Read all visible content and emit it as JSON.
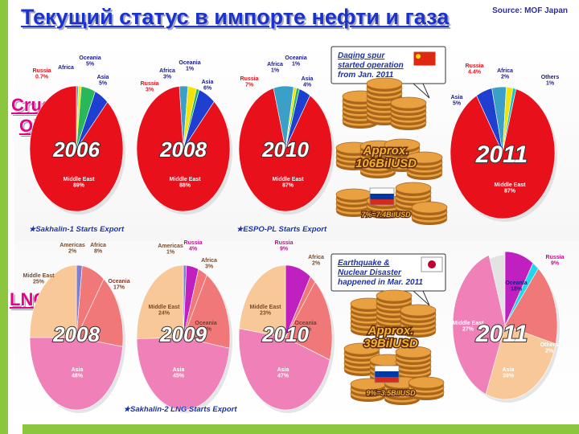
{
  "title": "Текущий статус в импорте нефти и газа",
  "source": "Source: MOF Japan",
  "categories": {
    "oil": "Crude\nOil",
    "lng": "LNG"
  },
  "colors": {
    "middle_east_oil": "#e8101a",
    "russia": "#3aa0c8",
    "oceania": "#28b85a",
    "africa": "#f2e40a",
    "asia": "#1e3fcf",
    "others_oil": "#18c4c8",
    "lng_middle_east": "#f8c898",
    "lng_oceania": "#f07878",
    "lng_asia": "#f080b8",
    "lng_russia": "#c020c0",
    "lng_others": "#20d8e8",
    "lng_americas": "#7b7fd0"
  },
  "callouts": {
    "oil_note": [
      "Daqing spur",
      "started operation",
      "from Jan. 2011"
    ],
    "lng_note": [
      "Earthquake &",
      "Nuclear Disaster",
      "happened  in Mar. 2011"
    ],
    "oil_coins": [
      "Approx.",
      "106BilUSD"
    ],
    "oil_russia": "7%=7.4BilUSD",
    "lng_coins": [
      "Approx.",
      "39BilUSD"
    ],
    "lng_russia": "9%=3.5BilUSD"
  },
  "starts": {
    "sakhalin1": "★Sakhalin-1 Starts Export",
    "espo": "★ESPO-PL Starts Export",
    "sakhalin2": "★Sakhalin-2 LNG Starts Export"
  },
  "chart_data": [
    {
      "type": "pie",
      "title": "2006",
      "group": "Crude Oil",
      "slices": [
        {
          "label": "Middle East",
          "value": 89
        },
        {
          "label": "Russia",
          "value": 0.7
        },
        {
          "label": "Africa",
          "value": 1
        },
        {
          "label": "Oceania",
          "value": 5
        },
        {
          "label": "Asia",
          "value": 5
        }
      ],
      "label_text": {
        "Middle East": "Middle East\n89%",
        "Russia": "Russia\n0.7%",
        "Africa": "Africa\n",
        "Oceania": "Oceania\n5%",
        "Asia": "Asia\n5%"
      }
    },
    {
      "type": "pie",
      "title": "2008",
      "group": "Crude Oil",
      "slices": [
        {
          "label": "Middle East",
          "value": 88
        },
        {
          "label": "Russia",
          "value": 3
        },
        {
          "label": "Africa",
          "value": 3
        },
        {
          "label": "Oceania",
          "value": 1
        },
        {
          "label": "Asia",
          "value": 6
        }
      ],
      "label_text": {
        "Middle East": "Middle East\n88%",
        "Russia": "Russia\n3%",
        "Africa": "Africa\n3%",
        "Oceania": "Oceania\n1%",
        "Asia": "Asia\n6%"
      }
    },
    {
      "type": "pie",
      "title": "2010",
      "group": "Crude Oil",
      "slices": [
        {
          "label": "Middle East",
          "value": 87
        },
        {
          "label": "Russia",
          "value": 7
        },
        {
          "label": "Africa",
          "value": 1
        },
        {
          "label": "Oceania",
          "value": 1
        },
        {
          "label": "Asia",
          "value": 4
        }
      ],
      "label_text": {
        "Middle East": "Middle East\n87%",
        "Russia": "Russia\n7%",
        "Africa": "Africa\n1%",
        "Oceania": "Oceania\n1%",
        "Asia": "Asia\n4%"
      }
    },
    {
      "type": "pie",
      "title": "2011",
      "group": "Crude Oil",
      "slices": [
        {
          "label": "Middle East",
          "value": 87
        },
        {
          "label": "Russia",
          "value": 4.4
        },
        {
          "label": "Africa",
          "value": 2
        },
        {
          "label": "Others",
          "value": 1
        },
        {
          "label": "Asia",
          "value": 5
        }
      ],
      "label_text": {
        "Middle East": "Middle East\n87%",
        "Russia": "Russia\n4.4%",
        "Africa": "Africa\n2%",
        "Others": "Others\n1%",
        "Asia": "Asia\n5%"
      }
    },
    {
      "type": "pie",
      "title": "2008",
      "group": "LNG",
      "slices": [
        {
          "label": "Asia",
          "value": 48
        },
        {
          "label": "Middle East",
          "value": 25
        },
        {
          "label": "Americas",
          "value": 2
        },
        {
          "label": "Africa",
          "value": 8
        },
        {
          "label": "Oceania",
          "value": 17
        }
      ],
      "label_text": {
        "Asia": "Asia\n48%",
        "Middle East": "Middle East\n25%",
        "Americas": "Americas\n2%",
        "Africa": "Africa\n8%",
        "Oceania": "Oceania\n17%"
      }
    },
    {
      "type": "pie",
      "title": "2009",
      "group": "LNG",
      "slices": [
        {
          "label": "Asia",
          "value": 45
        },
        {
          "label": "Middle East",
          "value": 24
        },
        {
          "label": "Americas",
          "value": 1
        },
        {
          "label": "Russia",
          "value": 4
        },
        {
          "label": "Africa",
          "value": 3
        },
        {
          "label": "Oceania",
          "value": 18
        }
      ],
      "label_text": {
        "Asia": "Asia\n45%",
        "Middle East": "Middle East\n24%",
        "Americas": "Americas\n1%",
        "Russia": "Russia\n4%",
        "Africa": "Africa\n3%",
        "Oceania": "Oceania\n18%"
      }
    },
    {
      "type": "pie",
      "title": "2010",
      "group": "LNG",
      "slices": [
        {
          "label": "Asia",
          "value": 47
        },
        {
          "label": "Middle East",
          "value": 23
        },
        {
          "label": "Russia",
          "value": 9
        },
        {
          "label": "Africa",
          "value": 2
        },
        {
          "label": "Oceania",
          "value": 19
        }
      ],
      "label_text": {
        "Asia": "Asia\n47%",
        "Middle East": "Middle East\n23%",
        "Russia": "Russia\n9%",
        "Africa": "Africa\n2%",
        "Oceania": "Oceania\n19%"
      }
    },
    {
      "type": "pie",
      "title": "2011",
      "group": "LNG",
      "slices": [
        {
          "label": "Asia",
          "value": 39
        },
        {
          "label": "Middle East",
          "value": 27
        },
        {
          "label": "Russia",
          "value": 9
        },
        {
          "label": "Others",
          "value": 2
        },
        {
          "label": "Oceania",
          "value": 18
        },
        {
          "label": "Africa",
          "value": 5
        }
      ],
      "label_text": {
        "Asia": "Asia\n39%",
        "Middle East": "Middle East\n27%",
        "Russia": "Russia\n9%",
        "Others": "Others\n2%",
        "Oceania": "Oceania\n18%",
        "Africa": ""
      }
    }
  ]
}
